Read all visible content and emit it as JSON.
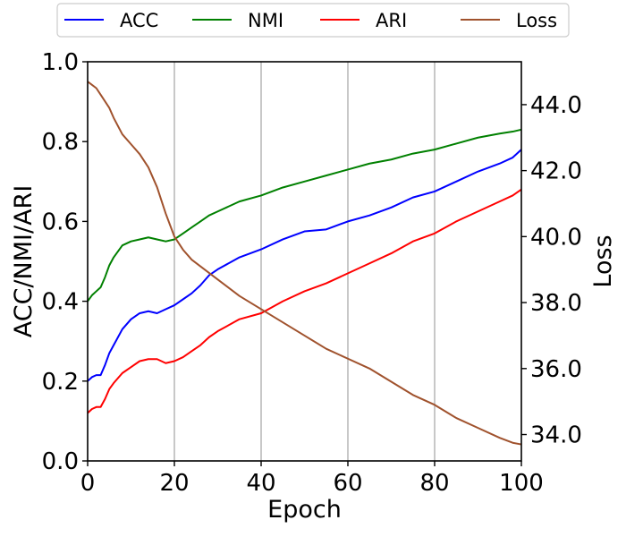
{
  "chart_data": {
    "type": "line",
    "title": "",
    "xlabel": "Epoch",
    "ylabel_left": "ACC/NMI/ARI",
    "ylabel_right": "Loss",
    "xlim": [
      0,
      100
    ],
    "ylim_left": [
      0.0,
      1.0
    ],
    "ylim_right": [
      33.2,
      45.3
    ],
    "x_ticks": [
      0,
      20,
      40,
      60,
      80,
      100
    ],
    "x_tick_labels": [
      "0",
      "20",
      "40",
      "60",
      "80",
      "100"
    ],
    "y_left_ticks": [
      0.0,
      0.2,
      0.4,
      0.6,
      0.8,
      1.0
    ],
    "y_left_tick_labels": [
      "0.0",
      "0.2",
      "0.4",
      "0.6",
      "0.8",
      "1.0"
    ],
    "y_right_ticks": [
      34,
      36,
      38,
      40,
      42,
      44
    ],
    "y_right_tick_labels": [
      "34.0",
      "36.0",
      "38.0",
      "40.0",
      "42.0",
      "44.0"
    ],
    "grid": "vertical-only",
    "legend_position": "top-center-outside",
    "x": [
      0,
      1,
      2,
      3,
      4,
      5,
      6,
      8,
      10,
      12,
      14,
      16,
      18,
      20,
      22,
      24,
      26,
      28,
      30,
      35,
      40,
      45,
      50,
      55,
      60,
      65,
      70,
      75,
      80,
      85,
      90,
      95,
      98,
      100
    ],
    "series": [
      {
        "name": "ACC",
        "axis": "left",
        "color": "#0000ff",
        "values": [
          0.2,
          0.21,
          0.215,
          0.215,
          0.24,
          0.27,
          0.29,
          0.33,
          0.355,
          0.37,
          0.375,
          0.37,
          0.38,
          0.39,
          0.405,
          0.42,
          0.44,
          0.465,
          0.48,
          0.51,
          0.53,
          0.555,
          0.575,
          0.58,
          0.6,
          0.615,
          0.635,
          0.66,
          0.675,
          0.7,
          0.725,
          0.745,
          0.76,
          0.78
        ]
      },
      {
        "name": "NMI",
        "axis": "left",
        "color": "#008000",
        "values": [
          0.4,
          0.415,
          0.425,
          0.435,
          0.46,
          0.49,
          0.51,
          0.54,
          0.55,
          0.555,
          0.56,
          0.555,
          0.55,
          0.555,
          0.57,
          0.585,
          0.6,
          0.615,
          0.625,
          0.65,
          0.665,
          0.685,
          0.7,
          0.715,
          0.73,
          0.745,
          0.755,
          0.77,
          0.78,
          0.795,
          0.81,
          0.82,
          0.825,
          0.83
        ]
      },
      {
        "name": "ARI",
        "axis": "left",
        "color": "#ff0000",
        "values": [
          0.12,
          0.13,
          0.135,
          0.135,
          0.155,
          0.18,
          0.195,
          0.22,
          0.235,
          0.25,
          0.255,
          0.255,
          0.245,
          0.25,
          0.26,
          0.275,
          0.29,
          0.31,
          0.325,
          0.355,
          0.37,
          0.4,
          0.425,
          0.445,
          0.47,
          0.495,
          0.52,
          0.55,
          0.57,
          0.6,
          0.625,
          0.65,
          0.665,
          0.68
        ]
      },
      {
        "name": "Loss",
        "axis": "right",
        "color": "#a0522d",
        "values": [
          44.7,
          44.6,
          44.5,
          44.3,
          44.1,
          43.9,
          43.6,
          43.1,
          42.8,
          42.5,
          42.1,
          41.5,
          40.7,
          40.0,
          39.6,
          39.3,
          39.1,
          38.9,
          38.7,
          38.2,
          37.8,
          37.4,
          37.0,
          36.6,
          36.3,
          36.0,
          35.6,
          35.2,
          34.9,
          34.5,
          34.2,
          33.9,
          33.75,
          33.7
        ]
      }
    ]
  }
}
